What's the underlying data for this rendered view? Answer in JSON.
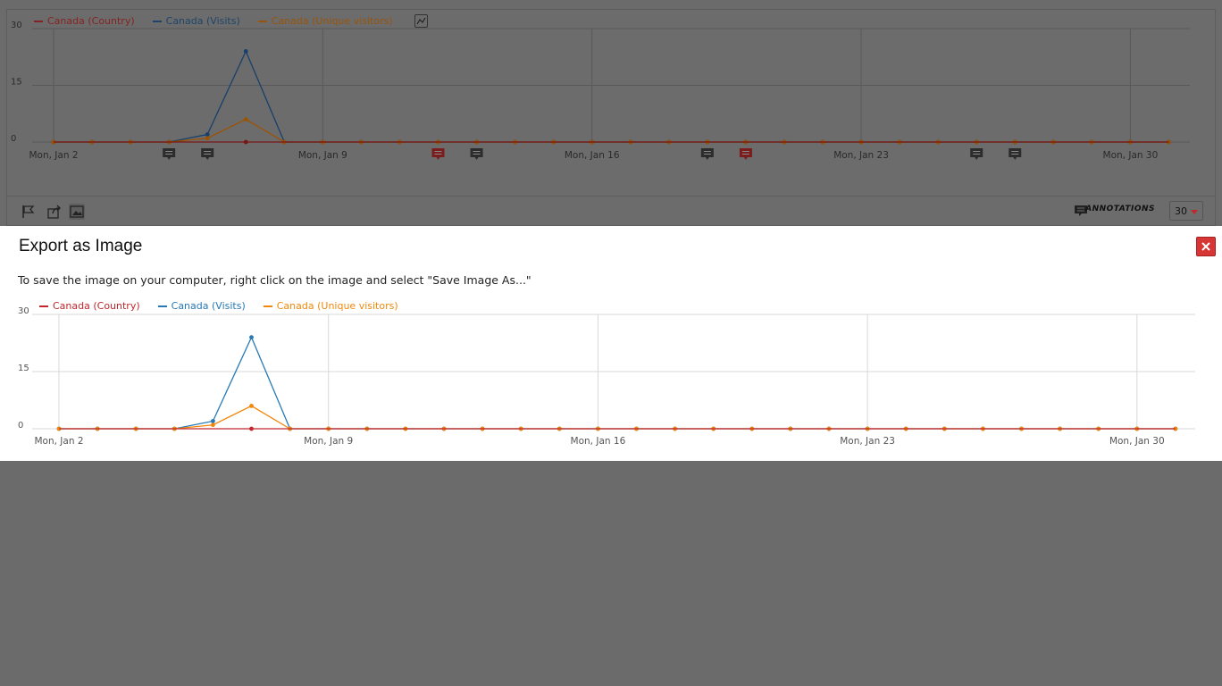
{
  "background_widget": {
    "legend": [
      {
        "label": "Canada (Country)",
        "color": "#b41d1d"
      },
      {
        "label": "Canada (Visits)",
        "color": "#1a4d7e"
      },
      {
        "label": "Canada (Unique visitors)",
        "color": "#b86000"
      }
    ],
    "toolbar_icons": [
      "flag-icon",
      "share-icon",
      "image-icon"
    ],
    "annotations_label": "ANNOTATIONS",
    "period_value": "30"
  },
  "modal": {
    "title": "Export as Image",
    "instructions": "To save the image on your computer, right click on the image and select \"Save Image As...\"",
    "close_icon": "close-icon"
  },
  "chart_data": {
    "type": "line",
    "x_tick_labels": [
      "Mon, Jan 2",
      "Mon, Jan 9",
      "Mon, Jan 16",
      "Mon, Jan 23",
      "Mon, Jan 30"
    ],
    "y_tick_labels": [
      "0",
      "15",
      "30"
    ],
    "ylim": [
      0,
      30
    ],
    "x_count": 30,
    "series": [
      {
        "name": "Canada (Country)",
        "color": "#c1272d",
        "values": [
          0,
          0,
          0,
          0,
          0,
          0,
          0,
          0,
          0,
          0,
          0,
          0,
          0,
          0,
          0,
          0,
          0,
          0,
          0,
          0,
          0,
          0,
          0,
          0,
          0,
          0,
          0,
          0,
          0,
          0
        ]
      },
      {
        "name": "Canada (Visits)",
        "color": "#2779b5",
        "values": [
          0,
          0,
          0,
          0,
          2,
          24,
          0,
          0,
          0,
          0,
          0,
          0,
          0,
          0,
          0,
          0,
          0,
          0,
          0,
          0,
          0,
          0,
          0,
          0,
          0,
          0,
          0,
          0,
          0,
          0
        ]
      },
      {
        "name": "Canada (Unique visitors)",
        "color": "#f0880d",
        "values": [
          0,
          0,
          0,
          0,
          1,
          6,
          0,
          0,
          0,
          0,
          0,
          0,
          0,
          0,
          0,
          0,
          0,
          0,
          0,
          0,
          0,
          0,
          0,
          0,
          0,
          0,
          0,
          0,
          0,
          0
        ]
      }
    ],
    "annotation_markers": [
      {
        "day": 3,
        "highlight": false
      },
      {
        "day": 4,
        "highlight": false
      },
      {
        "day": 10,
        "highlight": true
      },
      {
        "day": 11,
        "highlight": false
      },
      {
        "day": 17,
        "highlight": false
      },
      {
        "day": 18,
        "highlight": true
      },
      {
        "day": 24,
        "highlight": false
      },
      {
        "day": 25,
        "highlight": false
      }
    ]
  }
}
